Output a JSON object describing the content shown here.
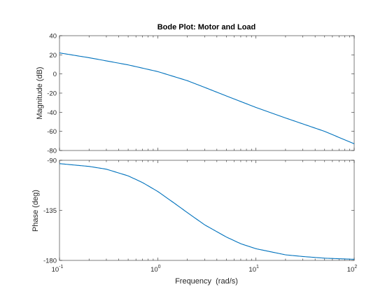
{
  "chart_data": {
    "type": "line",
    "title": "Bode Plot: Motor and Load",
    "xlabel": "Frequency  (rad/s)",
    "x_scale": "log",
    "x_ticks": [
      0.1,
      1,
      10,
      100
    ],
    "x_tick_labels": [
      {
        "base": "10",
        "exp": "-1"
      },
      {
        "base": "10",
        "exp": "0"
      },
      {
        "base": "10",
        "exp": "1"
      },
      {
        "base": "10",
        "exp": "2"
      }
    ],
    "line_color": "#0072BD",
    "subplots": [
      {
        "name": "magnitude",
        "ylabel": "Magnitude (dB)",
        "ylim": [
          -80,
          40
        ],
        "y_ticks": [
          40,
          20,
          0,
          -20,
          -40,
          -60,
          -80
        ],
        "x": [
          0.1,
          0.2,
          0.5,
          1,
          2,
          3,
          5,
          10,
          20,
          50,
          100
        ],
        "y": [
          22,
          17,
          9.5,
          2.5,
          -7,
          -14,
          -23,
          -35,
          -46,
          -60,
          -73
        ]
      },
      {
        "name": "phase",
        "ylabel": "Phase (deg)",
        "ylim": [
          -180,
          -90
        ],
        "y_ticks": [
          -90,
          -135,
          -180
        ],
        "x": [
          0.1,
          0.2,
          0.3,
          0.5,
          0.7,
          1,
          1.5,
          2,
          3,
          5,
          7,
          10,
          20,
          30,
          50,
          100
        ],
        "y": [
          -93,
          -95.5,
          -98,
          -104,
          -110,
          -118,
          -129,
          -137,
          -148,
          -159,
          -165,
          -169.5,
          -175,
          -176.5,
          -178,
          -179
        ]
      }
    ]
  }
}
